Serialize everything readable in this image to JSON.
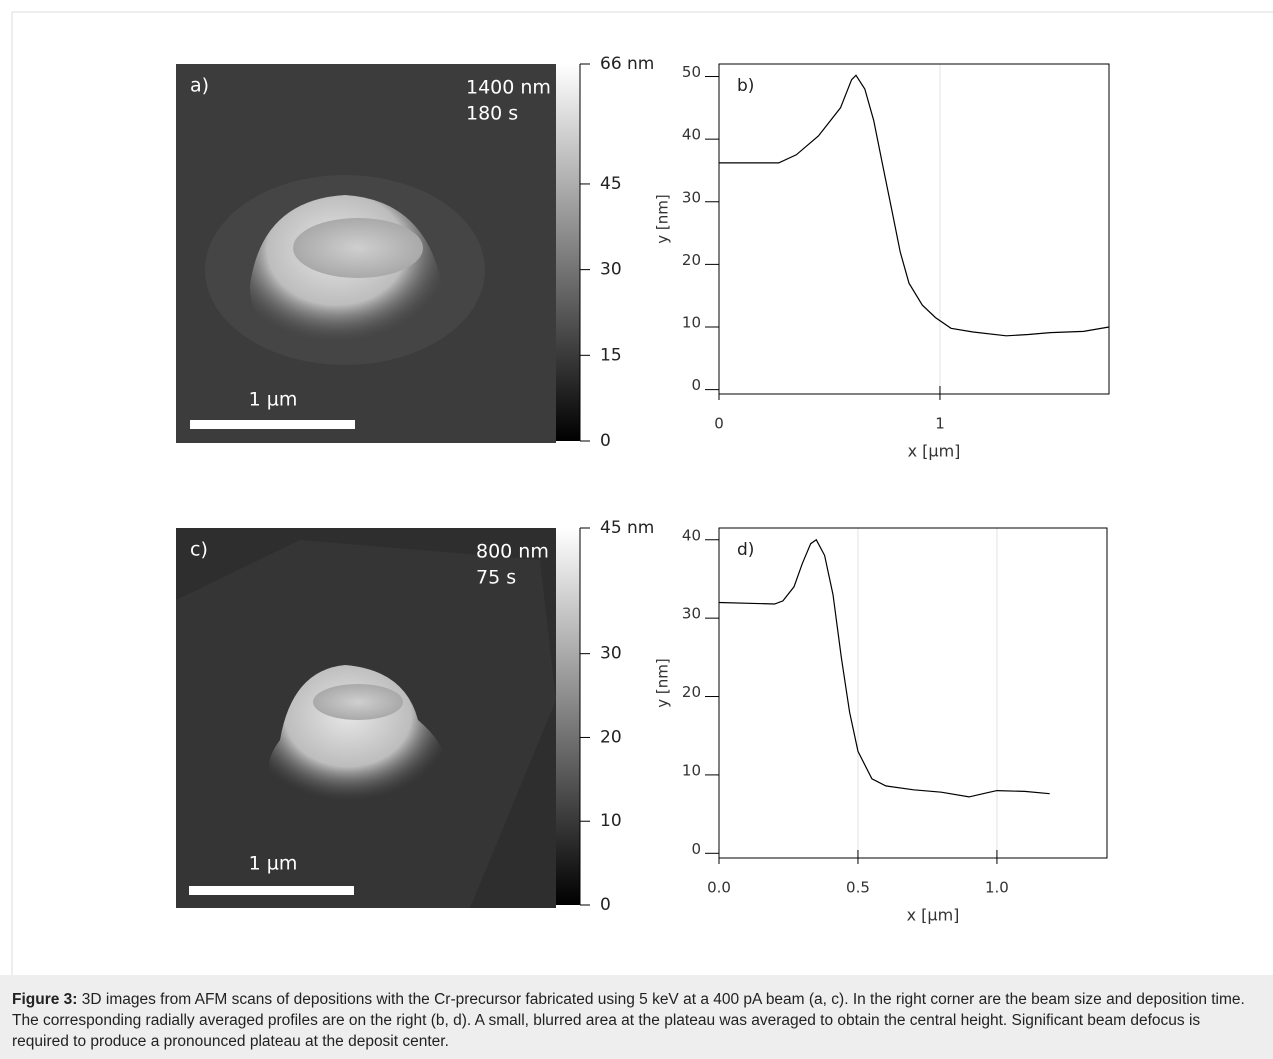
{
  "chart_data": [
    {
      "type": "line",
      "panel": "b)",
      "xlabel": "x [µm]",
      "ylabel": "y [nm]",
      "color": "#000000",
      "grid": "x",
      "xlim": [
        0,
        1.765
      ],
      "ylim": [
        -0.7,
        52
      ],
      "xticks": [
        0,
        1
      ],
      "yticks": [
        0,
        10,
        20,
        30,
        40,
        50
      ],
      "x": [
        0,
        0.27,
        0.35,
        0.45,
        0.55,
        0.6,
        0.62,
        0.66,
        0.7,
        0.74,
        0.78,
        0.82,
        0.86,
        0.92,
        0.98,
        1.05,
        1.15,
        1.3,
        1.4,
        1.5,
        1.65,
        1.765
      ],
      "values": [
        36.2,
        36.2,
        37.5,
        40.5,
        45,
        49.5,
        50.2,
        48,
        43,
        36,
        29,
        22,
        17,
        13.5,
        11.5,
        9.8,
        9.2,
        8.6,
        8.8,
        9.1,
        9.3,
        10
      ]
    },
    {
      "type": "line",
      "panel": "d)",
      "xlabel": "x [µm]",
      "ylabel": "y [nm]",
      "color": "#000000",
      "grid": "x",
      "xlim": [
        0,
        1.396
      ],
      "ylim": [
        -0.6,
        41.5
      ],
      "xticks": [
        {
          "value": 0,
          "label": "0.0"
        },
        0.5,
        {
          "value": 1,
          "label": "1.0"
        }
      ],
      "yticks": [
        0,
        10,
        20,
        30,
        40
      ],
      "x": [
        0,
        0.2,
        0.23,
        0.27,
        0.3,
        0.33,
        0.35,
        0.38,
        0.41,
        0.44,
        0.47,
        0.5,
        0.55,
        0.6,
        0.7,
        0.8,
        0.9,
        0.95,
        1.0,
        1.1,
        1.19
      ],
      "values": [
        32,
        31.8,
        32.2,
        34,
        37,
        39.5,
        40,
        38,
        33,
        25,
        18,
        13,
        9.5,
        8.6,
        8.1,
        7.8,
        7.2,
        7.6,
        8.0,
        7.9,
        7.6
      ]
    }
  ],
  "images": [
    {
      "panel": "a)",
      "size": "1400 nm",
      "time": "180 s",
      "scale_bar": "1 µm",
      "colorbar": {
        "zlim": [
          0,
          66
        ],
        "ticks": [
          0,
          15,
          30,
          45,
          {
            "value": 66,
            "label": "66 nm"
          }
        ]
      }
    },
    {
      "panel": "c)",
      "size": "800 nm",
      "time": "75 s",
      "scale_bar": "1 µm",
      "colorbar": {
        "zlim": [
          0,
          45
        ],
        "ticks": [
          0,
          10,
          20,
          30,
          {
            "value": 45,
            "label": "45 nm"
          }
        ]
      }
    }
  ],
  "caption": {
    "label": "Figure 3:",
    "text": "3D images from AFM scans of depositions with the Cr-precursor fabricated using 5 keV at a 400 pA beam (a, c). In the right corner are the beam size and deposition time. The corresponding radially averaged profiles are on the right (b, d). A small, blurred area at the plateau was averaged to obtain the central height. Significant beam defocus is required to produce a pronounced plateau at the deposit center."
  }
}
